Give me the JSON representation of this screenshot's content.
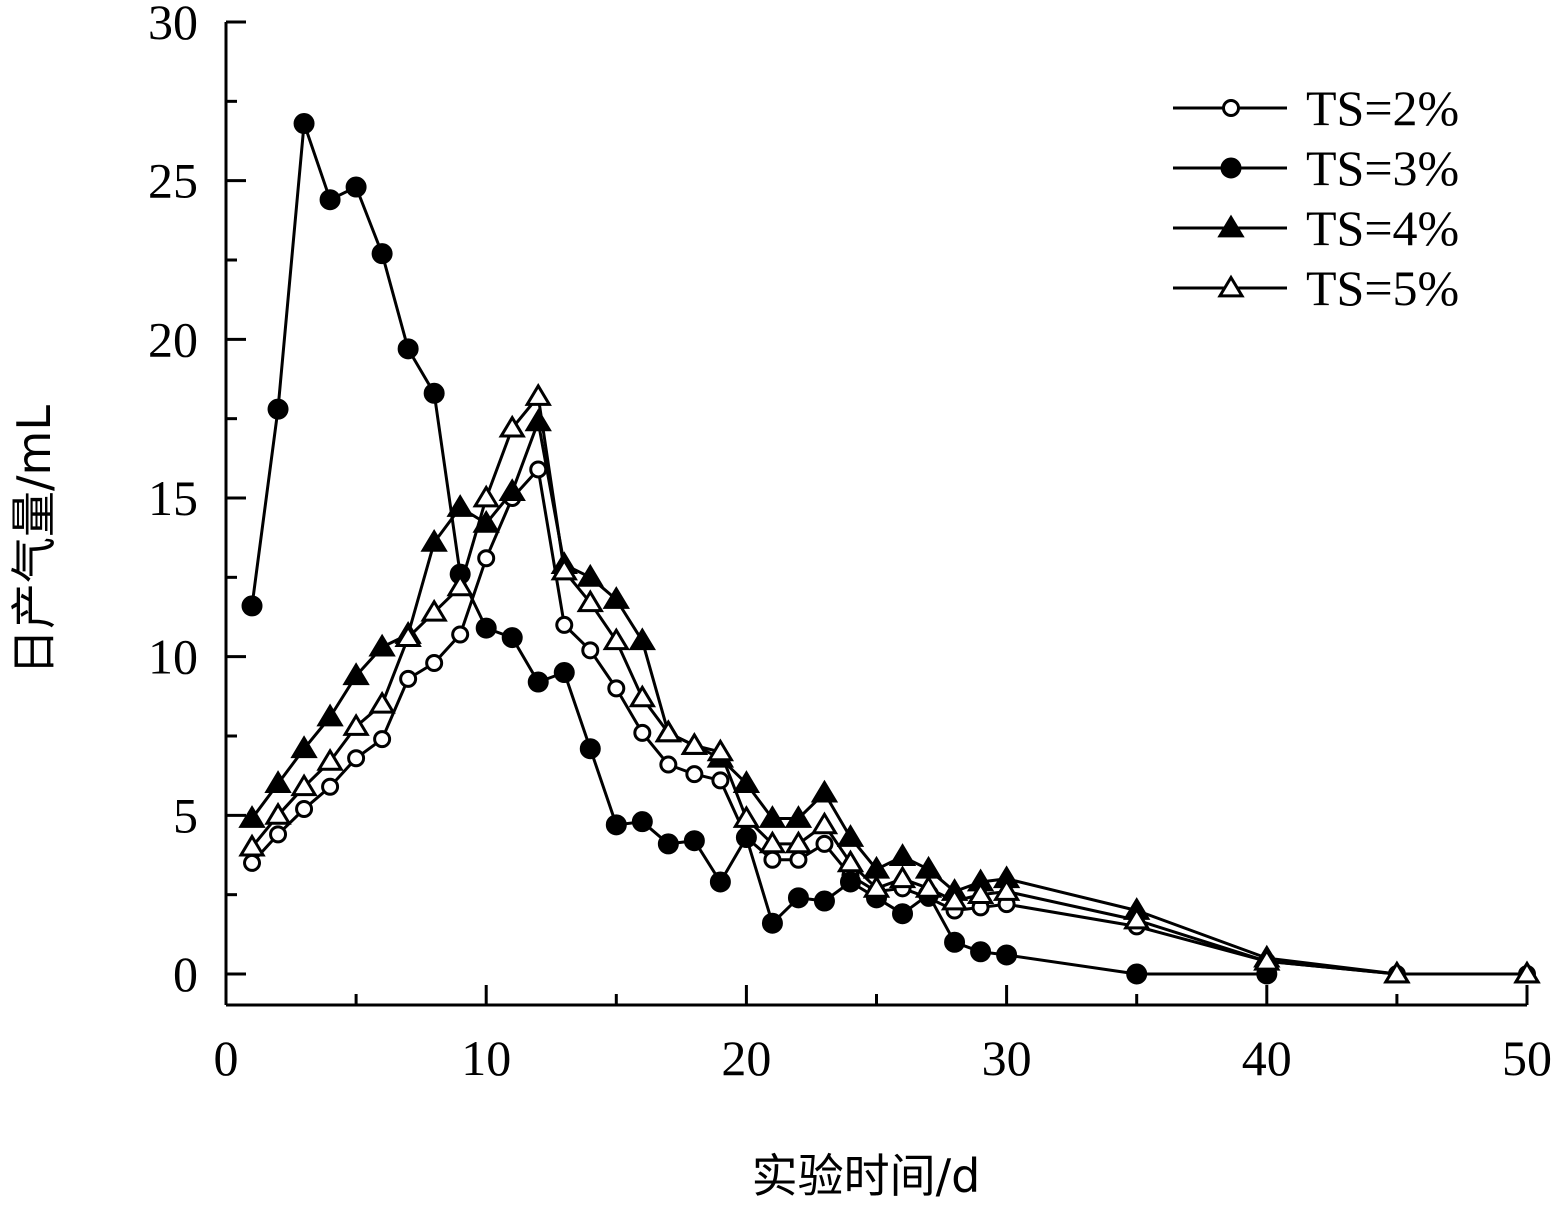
{
  "chart_data": {
    "type": "line",
    "xlabel": "实验时间/d",
    "ylabel": "日产气量/mL",
    "xlim": [
      0,
      50
    ],
    "ylim": [
      0,
      30
    ],
    "xticks": [
      0,
      10,
      20,
      30,
      40,
      50
    ],
    "yticks": [
      0,
      5,
      10,
      15,
      20,
      25,
      30
    ],
    "grid": false,
    "legend_position": "top-right",
    "series": [
      {
        "name": "TS=2%",
        "marker": "circle-open",
        "x": [
          1,
          2,
          3,
          4,
          5,
          6,
          7,
          8,
          9,
          10,
          11,
          12,
          13,
          14,
          15,
          16,
          17,
          18,
          19,
          20,
          21,
          22,
          23,
          24,
          25,
          26,
          27,
          28,
          29,
          30,
          35,
          40,
          45,
          50
        ],
        "y": [
          3.5,
          4.4,
          5.2,
          5.9,
          6.8,
          7.4,
          9.3,
          9.8,
          10.7,
          13.1,
          15.0,
          15.9,
          11.0,
          10.2,
          9.0,
          7.6,
          6.6,
          6.3,
          6.1,
          4.3,
          3.6,
          3.6,
          4.1,
          3.1,
          2.6,
          2.7,
          2.4,
          2.0,
          2.1,
          2.2,
          1.5,
          0.4,
          0.0,
          0.0
        ]
      },
      {
        "name": "TS=3%",
        "marker": "circle-filled",
        "x": [
          1,
          2,
          3,
          4,
          5,
          6,
          7,
          8,
          9,
          10,
          11,
          12,
          13,
          14,
          15,
          16,
          17,
          18,
          19,
          20,
          21,
          22,
          23,
          24,
          25,
          26,
          27,
          28,
          29,
          30,
          35,
          40
        ],
        "y": [
          11.6,
          17.8,
          26.8,
          24.4,
          24.8,
          22.7,
          19.7,
          18.3,
          12.6,
          10.9,
          10.6,
          9.2,
          9.5,
          7.1,
          4.7,
          4.8,
          4.1,
          4.2,
          2.9,
          4.3,
          1.6,
          2.4,
          2.3,
          2.9,
          2.4,
          1.9,
          2.5,
          1.0,
          0.7,
          0.6,
          0.0,
          0.0
        ]
      },
      {
        "name": "TS=4%",
        "marker": "triangle-filled",
        "x": [
          1,
          2,
          3,
          4,
          5,
          6,
          7,
          8,
          9,
          10,
          11,
          12,
          13,
          14,
          15,
          16,
          17,
          18,
          19,
          20,
          21,
          22,
          23,
          24,
          25,
          26,
          27,
          28,
          29,
          30,
          35,
          40,
          45,
          50
        ],
        "y": [
          4.9,
          6.0,
          7.1,
          8.1,
          9.4,
          10.3,
          10.7,
          13.6,
          14.7,
          14.2,
          15.2,
          17.4,
          12.9,
          12.5,
          11.8,
          10.5,
          7.6,
          7.2,
          6.8,
          6.0,
          4.9,
          4.9,
          5.7,
          4.3,
          3.3,
          3.7,
          3.3,
          2.6,
          2.9,
          3.0,
          2.0,
          0.5,
          0.0,
          0.0
        ]
      },
      {
        "name": "TS=5%",
        "marker": "triangle-open",
        "x": [
          1,
          2,
          3,
          4,
          5,
          6,
          7,
          8,
          9,
          10,
          11,
          12,
          13,
          14,
          15,
          16,
          17,
          18,
          19,
          20,
          21,
          22,
          23,
          24,
          25,
          26,
          27,
          28,
          29,
          30,
          35,
          40,
          45,
          50
        ],
        "y": [
          4.0,
          5.0,
          5.9,
          6.7,
          7.8,
          8.5,
          10.6,
          11.4,
          12.2,
          15.0,
          17.2,
          18.2,
          12.7,
          11.7,
          10.5,
          8.7,
          7.6,
          7.2,
          7.0,
          4.9,
          4.1,
          4.1,
          4.7,
          3.5,
          2.7,
          3.0,
          2.7,
          2.3,
          2.5,
          2.6,
          1.7,
          0.4,
          0.0,
          0.0
        ]
      }
    ]
  }
}
